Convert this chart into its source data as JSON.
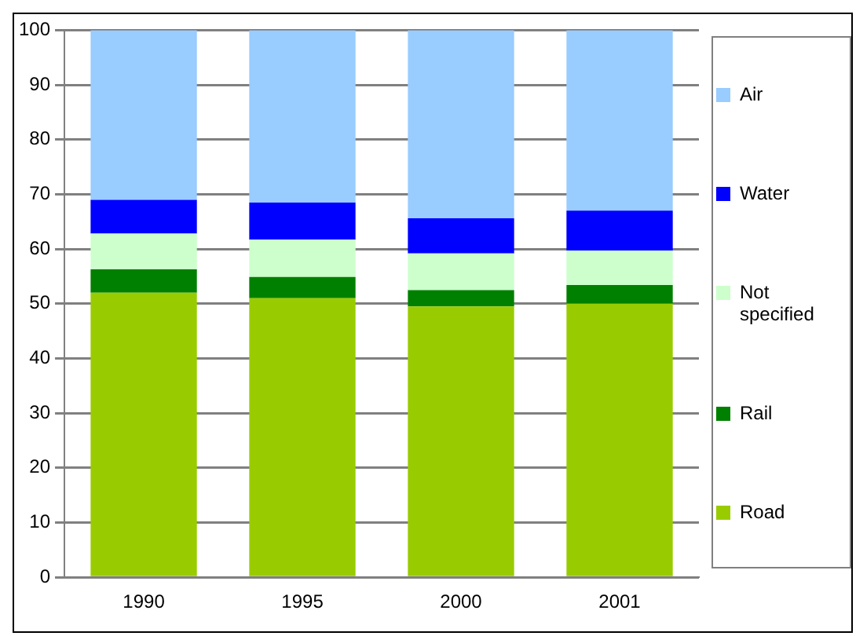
{
  "chart_data": {
    "type": "bar",
    "stacked": true,
    "categories": [
      "1990",
      "1995",
      "2000",
      "2001"
    ],
    "series": [
      {
        "name": "Road",
        "color": "#99cc00",
        "values": [
          52,
          51,
          49.5,
          50
        ]
      },
      {
        "name": "Rail",
        "color": "#008000",
        "values": [
          4.3,
          3.9,
          3,
          3.4
        ]
      },
      {
        "name": "Not specified",
        "color": "#ccffcc",
        "values": [
          6.5,
          6.8,
          6.7,
          6.3
        ]
      },
      {
        "name": "Water",
        "color": "#0000ff",
        "values": [
          6.2,
          6.8,
          6.4,
          7.3
        ]
      },
      {
        "name": "Air",
        "color": "#99ccff",
        "values": [
          31,
          31.5,
          34.4,
          33
        ]
      }
    ],
    "ylim": [
      0,
      100
    ],
    "yticks": [
      0,
      10,
      20,
      30,
      40,
      50,
      60,
      70,
      80,
      90,
      100
    ],
    "grid": "y",
    "legend": "right"
  }
}
